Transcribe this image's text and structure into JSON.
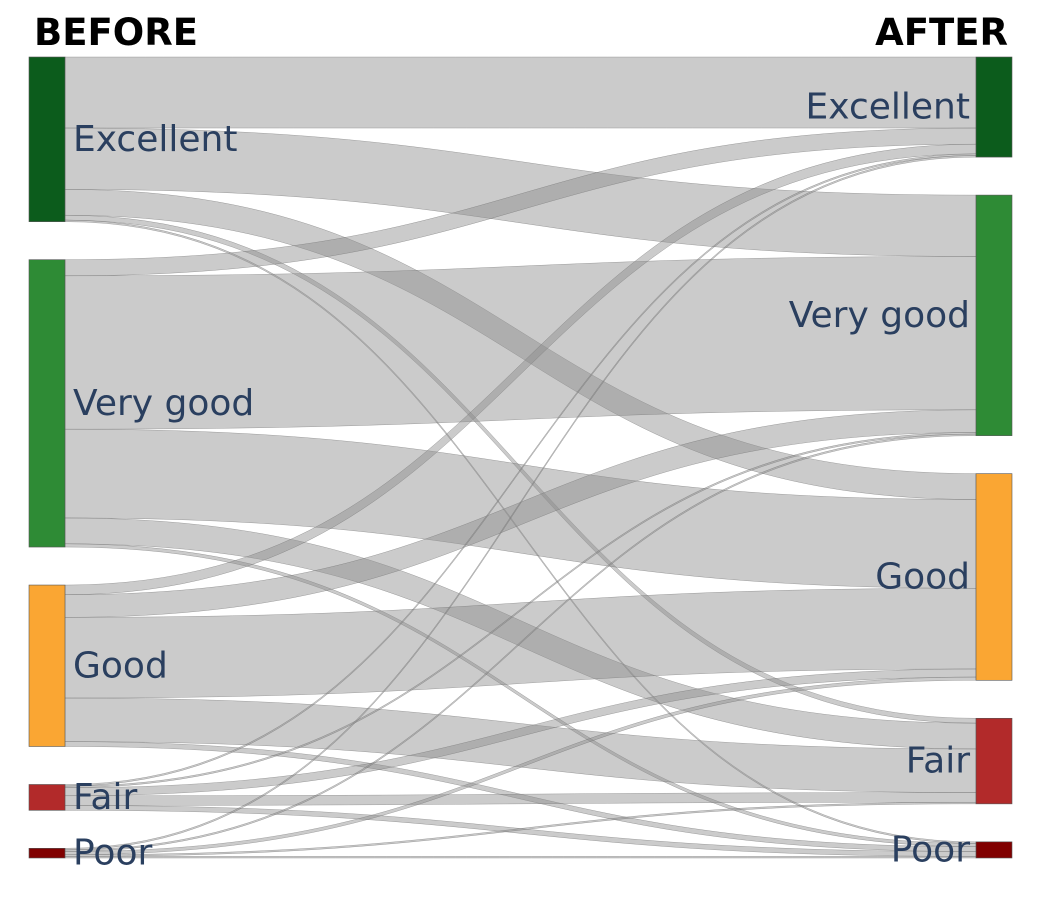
{
  "titles": {
    "left": "BEFORE",
    "right": "AFTER"
  },
  "chart_data": {
    "type": "sankey",
    "nodes_left": [
      {
        "name": "Excellent",
        "color": "#0c5c1c",
        "value": 102
      },
      {
        "name": "Very good",
        "color": "#2e8b35",
        "value": 178
      },
      {
        "name": "Good",
        "color": "#faa633",
        "value": 100
      },
      {
        "name": "Fair",
        "color": "#b22a2a",
        "value": 16
      },
      {
        "name": "Poor",
        "color": "#800000",
        "value": 6
      }
    ],
    "nodes_right": [
      {
        "name": "Excellent",
        "color": "#0c5c1c",
        "value": 62
      },
      {
        "name": "Very good",
        "color": "#2e8b35",
        "value": 149
      },
      {
        "name": "Good",
        "color": "#faa633",
        "value": 128
      },
      {
        "name": "Fair",
        "color": "#b22a2a",
        "value": 53
      },
      {
        "name": "Poor",
        "color": "#800000",
        "value": 10
      }
    ],
    "links": [
      {
        "source": "Excellent",
        "target": "Excellent",
        "value": 44
      },
      {
        "source": "Excellent",
        "target": "Very good",
        "value": 38
      },
      {
        "source": "Excellent",
        "target": "Good",
        "value": 16
      },
      {
        "source": "Excellent",
        "target": "Fair",
        "value": 3
      },
      {
        "source": "Excellent",
        "target": "Poor",
        "value": 1
      },
      {
        "source": "Very good",
        "target": "Excellent",
        "value": 10
      },
      {
        "source": "Very good",
        "target": "Very good",
        "value": 95
      },
      {
        "source": "Very good",
        "target": "Good",
        "value": 55
      },
      {
        "source": "Very good",
        "target": "Fair",
        "value": 16
      },
      {
        "source": "Very good",
        "target": "Poor",
        "value": 2
      },
      {
        "source": "Good",
        "target": "Excellent",
        "value": 6
      },
      {
        "source": "Good",
        "target": "Very good",
        "value": 14
      },
      {
        "source": "Good",
        "target": "Good",
        "value": 50
      },
      {
        "source": "Good",
        "target": "Fair",
        "value": 27
      },
      {
        "source": "Good",
        "target": "Poor",
        "value": 3
      },
      {
        "source": "Fair",
        "target": "Excellent",
        "value": 1
      },
      {
        "source": "Fair",
        "target": "Very good",
        "value": 1
      },
      {
        "source": "Fair",
        "target": "Good",
        "value": 5
      },
      {
        "source": "Fair",
        "target": "Fair",
        "value": 6
      },
      {
        "source": "Fair",
        "target": "Poor",
        "value": 3
      },
      {
        "source": "Poor",
        "target": "Excellent",
        "value": 1
      },
      {
        "source": "Poor",
        "target": "Very good",
        "value": 1
      },
      {
        "source": "Poor",
        "target": "Good",
        "value": 2
      },
      {
        "source": "Poor",
        "target": "Fair",
        "value": 1
      },
      {
        "source": "Poor",
        "target": "Poor",
        "value": 1
      }
    ]
  }
}
